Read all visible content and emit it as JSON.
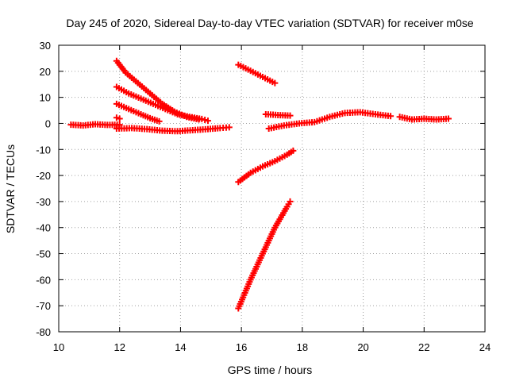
{
  "chart_data": {
    "type": "scatter",
    "title": "Day 245 of 2020, Sidereal Day-to-day VTEC variation (SDTVAR) for receiver m0se",
    "xlabel": "GPS time / hours",
    "ylabel": "SDTVAR / TECUs",
    "xlim": [
      10,
      24
    ],
    "ylim": [
      -80,
      30
    ],
    "x_ticks": [
      "10",
      "12",
      "14",
      "16",
      "18",
      "20",
      "22",
      "24"
    ],
    "y_ticks": [
      "30",
      "20",
      "10",
      "0",
      "-10",
      "-20",
      "-30",
      "-40",
      "-50",
      "-60",
      "-70",
      "-80"
    ],
    "grid": true,
    "legend": "none",
    "marker": "+",
    "color": "#ff0000",
    "series": [
      {
        "x": [
          10.4,
          10.8,
          11.2,
          11.6,
          12.0
        ],
        "y": [
          -0.5,
          -0.8,
          -0.3,
          -0.6,
          -0.5
        ]
      },
      {
        "x": [
          11.9,
          12.2,
          12.6,
          13.0,
          13.4,
          13.8,
          14.2,
          14.6
        ],
        "y": [
          24,
          19.5,
          15.5,
          11.5,
          7.5,
          4.5,
          2.5,
          1.5
        ]
      },
      {
        "x": [
          11.9,
          12.3,
          12.7,
          13.1,
          13.5,
          13.9,
          14.3,
          14.7,
          14.9
        ],
        "y": [
          14,
          11.5,
          9.5,
          7.5,
          5.5,
          3.5,
          2.5,
          1.7,
          1.0
        ]
      },
      {
        "x": [
          11.9,
          12.3,
          12.7,
          13.0,
          13.3
        ],
        "y": [
          7.5,
          5.5,
          3.5,
          2.0,
          0.8
        ]
      },
      {
        "x": [
          11.9,
          12.0
        ],
        "y": [
          2.2,
          1.8
        ]
      },
      {
        "x": [
          11.9,
          12.4,
          12.9,
          13.4,
          13.9,
          14.4,
          14.9,
          15.3,
          15.6
        ],
        "y": [
          -2.0,
          -1.8,
          -2.2,
          -2.8,
          -3.0,
          -2.6,
          -2.2,
          -1.8,
          -1.5
        ]
      },
      {
        "x": [
          15.9,
          16.3,
          16.7,
          17.1
        ],
        "y": [
          22.5,
          20.2,
          17.8,
          15.5
        ]
      },
      {
        "x": [
          16.8,
          17.2,
          17.6
        ],
        "y": [
          3.5,
          3.2,
          3.0
        ]
      },
      {
        "x": [
          16.9,
          17.4,
          17.9,
          18.4,
          18.9,
          19.4,
          19.9,
          20.4,
          20.9
        ],
        "y": [
          -2.0,
          -0.8,
          0.0,
          0.5,
          2.5,
          4.0,
          4.3,
          3.5,
          2.8
        ]
      },
      {
        "x": [
          21.2,
          21.6,
          22.0,
          22.4,
          22.8
        ],
        "y": [
          2.5,
          1.5,
          1.8,
          1.5,
          1.8
        ]
      },
      {
        "x": [
          15.9,
          16.3,
          16.7,
          17.1,
          17.5,
          17.7
        ],
        "y": [
          -22.5,
          -19.0,
          -16.5,
          -14.5,
          -12.0,
          -10.5
        ]
      },
      {
        "x": [
          15.9,
          16.3,
          16.7,
          17.1,
          17.5,
          17.6
        ],
        "y": [
          -71,
          -60,
          -50,
          -40,
          -32,
          -30
        ]
      }
    ]
  }
}
